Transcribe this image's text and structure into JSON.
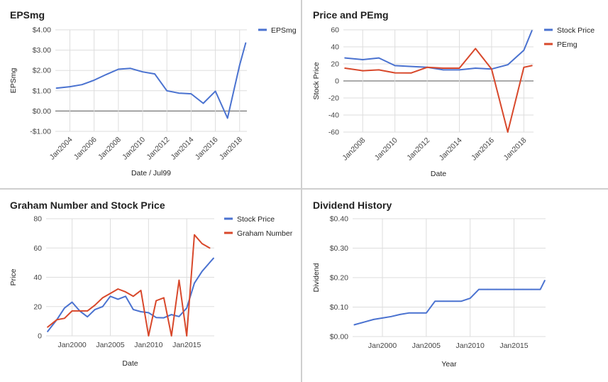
{
  "page": {
    "background": "#ffffff",
    "divider_color": "#cfcfcf"
  },
  "colors": {
    "blue": "#4a72d0",
    "red": "#d8482b",
    "grid": "#dddddd",
    "zero": "#777777"
  },
  "chart_data": [
    {
      "id": "epsmg",
      "type": "line",
      "title": "EPSmg",
      "xlabel": "Date / Jul99",
      "ylabel": "EPSmg",
      "x_type": "year",
      "x_range": [
        2002.8,
        2018.6
      ],
      "x_ticks": [
        2004,
        2006,
        2008,
        2010,
        2012,
        2014,
        2016,
        2018
      ],
      "x_tick_labels": [
        "Jan2004",
        "Jan2006",
        "Jan2008",
        "Jan2010",
        "Jan2012",
        "Jan2014",
        "Jan2016",
        "Jan2018"
      ],
      "x_tick_rotate": true,
      "ylim": [
        -1,
        4
      ],
      "y_ticks": [
        -1,
        0,
        1,
        2,
        3,
        4
      ],
      "y_tick_labels": [
        "-$1.00",
        "$0.00",
        "$1.00",
        "$2.00",
        "$3.00",
        "$4.00"
      ],
      "zero_line": true,
      "grid": true,
      "legend_position": "right",
      "series": [
        {
          "name": "EPSmg",
          "color": "#4a72d0",
          "x": [
            2002.9,
            2004,
            2005,
            2006,
            2007,
            2008,
            2009,
            2010,
            2011,
            2012,
            2013,
            2014,
            2015,
            2016,
            2017,
            2018,
            2018.5
          ],
          "values": [
            1.13,
            1.2,
            1.3,
            1.52,
            1.8,
            2.06,
            2.1,
            1.93,
            1.83,
            1.0,
            0.88,
            0.85,
            0.38,
            0.98,
            -0.35,
            2.25,
            3.35
          ]
        }
      ]
    },
    {
      "id": "price-pemg",
      "type": "line",
      "title": "Price and PEmg",
      "xlabel": "Date",
      "ylabel": "Stock Price",
      "x_type": "year",
      "x_range": [
        2006.8,
        2018.6
      ],
      "x_ticks": [
        2008,
        2010,
        2012,
        2014,
        2016,
        2018
      ],
      "x_tick_labels": [
        "Jan2008",
        "Jan2010",
        "Jan2012",
        "Jan2014",
        "Jan2016",
        "Jan2018"
      ],
      "x_tick_rotate": true,
      "ylim": [
        -60,
        60
      ],
      "y_ticks": [
        -60,
        -40,
        -20,
        0,
        20,
        40,
        60
      ],
      "y_tick_labels": [
        "-60",
        "-40",
        "-20",
        "0",
        "20",
        "40",
        "60"
      ],
      "zero_line": true,
      "grid": true,
      "legend_position": "right",
      "series": [
        {
          "name": "Stock Price",
          "color": "#4a72d0",
          "x": [
            2006.9,
            2008,
            2009,
            2010,
            2011,
            2012,
            2013,
            2014,
            2015,
            2016,
            2017,
            2018,
            2018.5
          ],
          "values": [
            27,
            25,
            27,
            18,
            17,
            16,
            13,
            13,
            15,
            14,
            19,
            36,
            59
          ]
        },
        {
          "name": "PEmg",
          "color": "#d8482b",
          "x": [
            2006.9,
            2008,
            2009,
            2010,
            2011,
            2012,
            2013,
            2014,
            2015,
            2016,
            2017,
            2018,
            2018.5
          ],
          "values": [
            15,
            12,
            13,
            9.5,
            9.3,
            16,
            15,
            15,
            38,
            14,
            -60,
            16,
            18
          ]
        }
      ]
    },
    {
      "id": "graham",
      "type": "line",
      "title": "Graham Number and Stock Price",
      "xlabel": "Date",
      "ylabel": "Price",
      "x_type": "year",
      "x_range": [
        1996.6,
        2018.6
      ],
      "x_ticks": [
        2000,
        2005,
        2010,
        2015
      ],
      "x_tick_labels": [
        "Jan2000",
        "Jan2005",
        "Jan2010",
        "Jan2015"
      ],
      "x_tick_rotate": false,
      "ylim": [
        0,
        80
      ],
      "y_ticks": [
        0,
        20,
        40,
        60,
        80
      ],
      "y_tick_labels": [
        "0",
        "20",
        "40",
        "60",
        "80"
      ],
      "zero_line": false,
      "grid": true,
      "legend_position": "right",
      "series": [
        {
          "name": "Stock Price",
          "color": "#4a72d0",
          "x": [
            1996.8,
            1998,
            1999,
            2000,
            2001,
            2002,
            2003,
            2004,
            2005,
            2006,
            2007,
            2008,
            2009,
            2010,
            2011,
            2012,
            2013,
            2014,
            2015,
            2016,
            2017,
            2018,
            2018.5
          ],
          "values": [
            3,
            11,
            19,
            23,
            17,
            13,
            18,
            20,
            27,
            25,
            27,
            18,
            16.5,
            15.8,
            12.5,
            12.3,
            14.5,
            13.2,
            19,
            36,
            44,
            50,
            53
          ]
        },
        {
          "name": "Graham Number",
          "color": "#d8482b",
          "x": [
            1996.8,
            1998,
            1999,
            2000,
            2001,
            2002,
            2003,
            2004,
            2005,
            2006,
            2007,
            2008,
            2009,
            2010,
            2011,
            2012,
            2013,
            2014,
            2015,
            2016,
            2017,
            2018
          ],
          "values": [
            6,
            11,
            12,
            17,
            17,
            17,
            21,
            26,
            29,
            32,
            30,
            27,
            31,
            0,
            24,
            26,
            0,
            38,
            0,
            69,
            63,
            60
          ]
        }
      ]
    },
    {
      "id": "dividend",
      "type": "line",
      "title": "Dividend History",
      "xlabel": "Year",
      "ylabel": "Dividend",
      "x_type": "year",
      "x_range": [
        1996.6,
        2018.6
      ],
      "x_ticks": [
        2000,
        2005,
        2010,
        2015
      ],
      "x_tick_labels": [
        "Jan2000",
        "Jan2005",
        "Jan2010",
        "Jan2015"
      ],
      "x_tick_rotate": false,
      "ylim": [
        0,
        0.4
      ],
      "y_ticks": [
        0,
        0.1,
        0.2,
        0.3,
        0.4
      ],
      "y_tick_labels": [
        "$0.00",
        "$0.10",
        "$0.20",
        "$0.30",
        "$0.40"
      ],
      "zero_line": false,
      "grid": true,
      "legend_position": "none",
      "series": [
        {
          "name": "",
          "color": "#4a72d0",
          "x": [
            1996.8,
            1998,
            1999,
            2000,
            2001,
            2002,
            2003,
            2004,
            2005,
            2006,
            2007,
            2008,
            2009,
            2010,
            2011,
            2012,
            2013,
            2014,
            2015,
            2016,
            2017,
            2018,
            2018.5
          ],
          "values": [
            0.04,
            0.05,
            0.058,
            0.063,
            0.068,
            0.075,
            0.08,
            0.08,
            0.08,
            0.12,
            0.12,
            0.12,
            0.12,
            0.13,
            0.16,
            0.16,
            0.16,
            0.16,
            0.16,
            0.16,
            0.16,
            0.16,
            0.19
          ]
        }
      ]
    }
  ]
}
